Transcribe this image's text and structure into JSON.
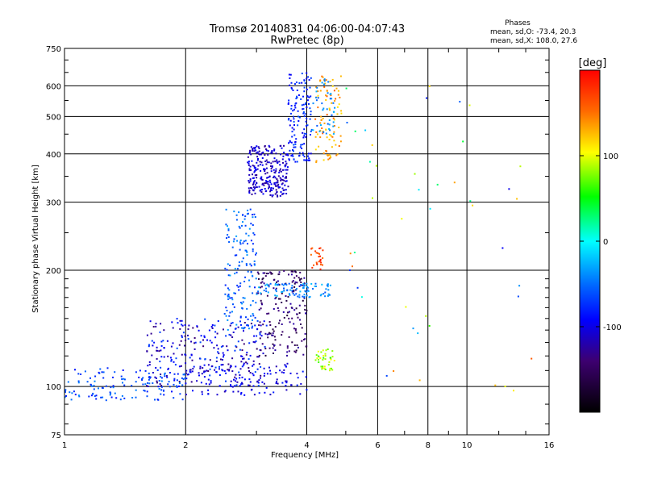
{
  "title": {
    "line1": "Tromsø 20140831 04:06:00-04:07:43",
    "line2": "RwPretec (8p)"
  },
  "phases_box": {
    "heading": "Phases",
    "line_o": "mean, sd,O: -73.4, 20.3",
    "line_x": "mean, sd,X: 108.0, 27.6"
  },
  "colorbar": {
    "unit": "[deg]",
    "ticks": [
      "100",
      "0",
      "-100"
    ],
    "tick_values": [
      100,
      0,
      -100
    ],
    "range": [
      -200,
      200
    ]
  },
  "chart_data": {
    "type": "scatter",
    "xlabel": "Frequency [MHz]",
    "ylabel": "Stationary phase Virtual Height [km]",
    "xscale": "log",
    "yscale": "log",
    "xlim": [
      1,
      16
    ],
    "ylim": [
      75,
      750
    ],
    "xticks": [
      1,
      2,
      4,
      6,
      8,
      10,
      16
    ],
    "xtick_labels": [
      "1",
      "2",
      "4",
      "6",
      "8",
      "10",
      "16"
    ],
    "yticks": [
      75,
      100,
      200,
      300,
      400,
      500,
      600,
      750
    ],
    "ytick_labels": [
      "75",
      "100",
      "200",
      "300",
      "400",
      "500",
      "600",
      "750"
    ],
    "grid": true,
    "color_by": "phase",
    "clusters": [
      {
        "x": [
          1.0,
          2.0
        ],
        "y": [
          92,
          112
        ],
        "phase": [
          -90,
          -40
        ],
        "n": 140
      },
      {
        "x": [
          1.6,
          3.2
        ],
        "y": [
          100,
          150
        ],
        "phase": [
          -140,
          -60
        ],
        "n": 260
      },
      {
        "x": [
          2.0,
          4.0
        ],
        "y": [
          95,
          115
        ],
        "phase": [
          -120,
          -80
        ],
        "n": 120
      },
      {
        "x": [
          2.5,
          3.0
        ],
        "y": [
          140,
          290
        ],
        "phase": [
          -80,
          -30
        ],
        "n": 160
      },
      {
        "x": [
          3.0,
          4.0
        ],
        "y": [
          120,
          200
        ],
        "phase": [
          -170,
          -120
        ],
        "n": 180
      },
      {
        "x": [
          3.0,
          4.6
        ],
        "y": [
          170,
          185
        ],
        "phase": [
          -60,
          -20
        ],
        "n": 90
      },
      {
        "x": [
          4.2,
          4.7
        ],
        "y": [
          110,
          125
        ],
        "phase": [
          60,
          110
        ],
        "n": 40
      },
      {
        "x": [
          4.1,
          4.4
        ],
        "y": [
          200,
          230
        ],
        "phase": [
          150,
          190
        ],
        "n": 25
      },
      {
        "x": [
          2.85,
          3.6
        ],
        "y": [
          310,
          420
        ],
        "phase": [
          -130,
          -90
        ],
        "n": 260
      },
      {
        "x": [
          3.6,
          4.1
        ],
        "y": [
          380,
          650
        ],
        "phase": [
          -100,
          -60
        ],
        "n": 140
      },
      {
        "x": [
          4.2,
          4.9
        ],
        "y": [
          380,
          640
        ],
        "phase": [
          110,
          160
        ],
        "n": 90
      },
      {
        "x": [
          4.1,
          4.7
        ],
        "y": [
          450,
          640
        ],
        "phase": [
          -60,
          -20
        ],
        "n": 40
      },
      {
        "x": [
          5.0,
          14.5
        ],
        "y": [
          90,
          650
        ],
        "phase": [
          -100,
          160
        ],
        "n": 45
      }
    ]
  }
}
